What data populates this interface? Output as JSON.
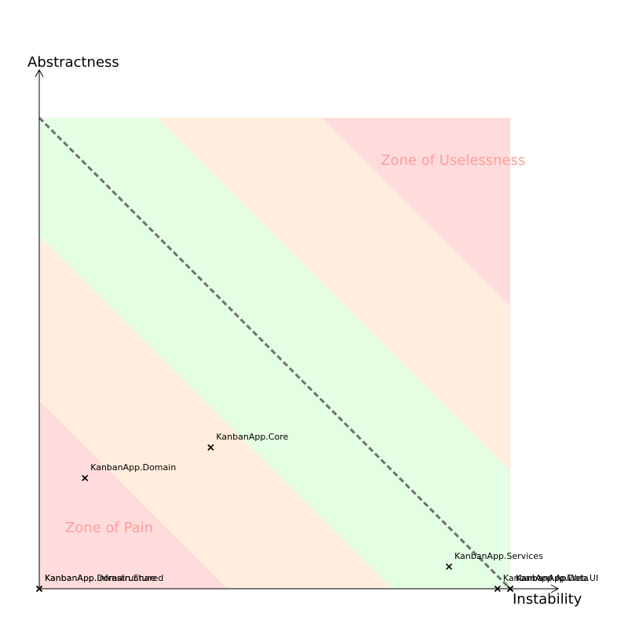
{
  "chart_data": {
    "type": "scatter",
    "title": "",
    "xlabel": "Instability",
    "ylabel": "Abstractness",
    "xlim": [
      0,
      1
    ],
    "ylim": [
      0,
      1
    ],
    "grid": false,
    "main_sequence": {
      "from": [
        0,
        1
      ],
      "to": [
        1,
        0
      ],
      "style": "dashed"
    },
    "zones": [
      {
        "label": "Zone of Pain"
      },
      {
        "label": "Zone of Uselessness"
      }
    ],
    "points": [
      {
        "label": "KanbanApp.Domain",
        "x": 0.097,
        "y": 0.235
      },
      {
        "label": "KanbanApp.Core",
        "x": 0.364,
        "y": 0.3
      },
      {
        "label": "KanbanApp.Services",
        "x": 0.87,
        "y": 0.047
      },
      {
        "label": "KanbanApp.Infrastructure",
        "x": 0.0,
        "y": 0.0
      },
      {
        "label": "KanbanApp.Domain.Shared",
        "x": 0.0,
        "y": 0.0
      },
      {
        "label": "KanbanApp.Api",
        "x": 0.973,
        "y": 0.0
      },
      {
        "label": "KanbanApp.Web.UI",
        "x": 1.0,
        "y": 0.0
      },
      {
        "label": "KanbanApp.Data",
        "x": 1.0,
        "y": 0.0
      }
    ]
  },
  "colors": {
    "pain_zone": "#ffdcdc",
    "caution_zone": "#ffeedd",
    "main_sequence_zone": "#e4fee4",
    "zone_label": "#ff9c9c",
    "main_sequence_line": "#707070",
    "axis": "#000000"
  }
}
